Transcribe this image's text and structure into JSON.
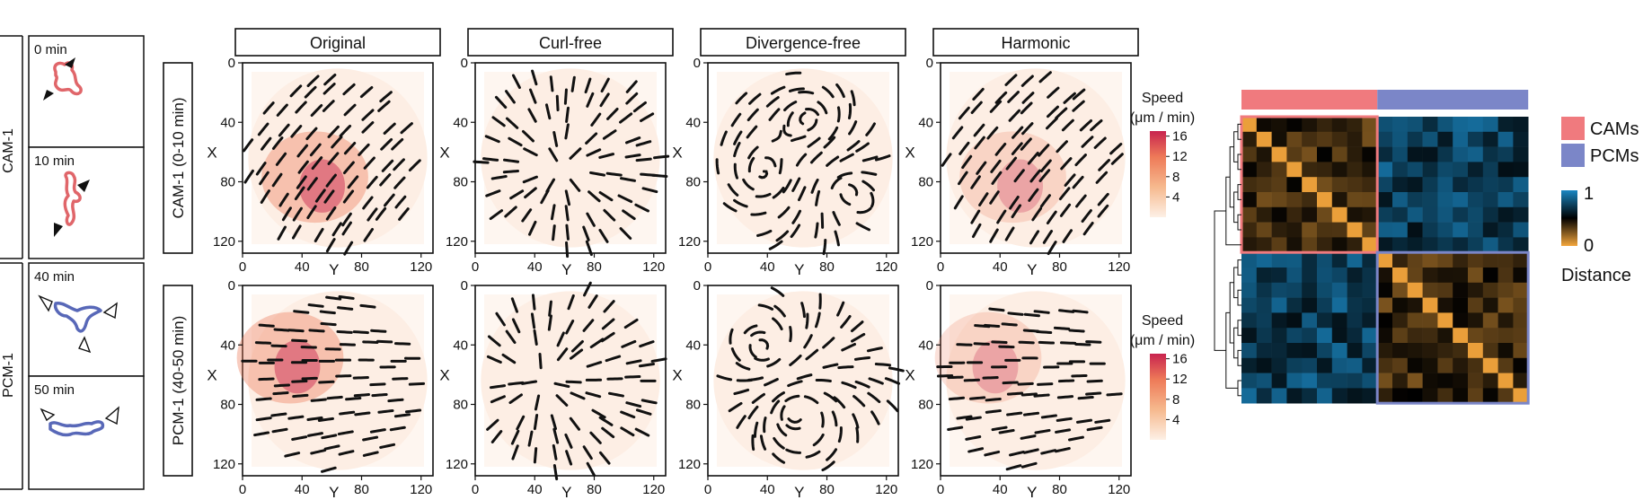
{
  "left_panel": {
    "groups": [
      {
        "label": "CAM-1",
        "cells": [
          {
            "time": "0 min"
          },
          {
            "time": "10 min"
          }
        ]
      },
      {
        "label": "PCM-1",
        "cells": [
          {
            "time": "40 min"
          },
          {
            "time": "50 min"
          }
        ]
      }
    ],
    "colors": {
      "cam": "#e0666a",
      "pcm": "#5868b8"
    }
  },
  "flow_panels": {
    "columns": [
      "Original",
      "Curl-free",
      "Divergence-free",
      "Harmonic"
    ],
    "rows": [
      {
        "label": "CAM-1 (0-10 min)"
      },
      {
        "label": "PCM-1 (40-50 min)"
      }
    ],
    "x_axis_label": "Y",
    "y_axis_label": "X",
    "ticks": [
      "0",
      "40",
      "80",
      "120"
    ],
    "tick_values": [
      0,
      40,
      80,
      120
    ],
    "axis_range": [
      0,
      128
    ],
    "legend": {
      "title_line1": "Speed",
      "title_line2": "(μm / min)",
      "ticks": [
        "16",
        "12",
        "8",
        "4"
      ],
      "range": [
        0,
        17
      ],
      "colors": [
        "#fdf0e6",
        "#f6b98e",
        "#ee7a58",
        "#c8244f"
      ]
    }
  },
  "heatmap": {
    "group_labels": [
      "CAMs",
      "PCMs"
    ],
    "group_colors": [
      "#f07a7e",
      "#7b86c8"
    ],
    "n_cam": 9,
    "n_pcm": 10,
    "colorbar": {
      "max_label": "1",
      "min_label": "0",
      "title": "Distance"
    },
    "colors": {
      "low": "#f4a63c",
      "mid": "#000000",
      "high": "#1a87c2"
    }
  }
}
